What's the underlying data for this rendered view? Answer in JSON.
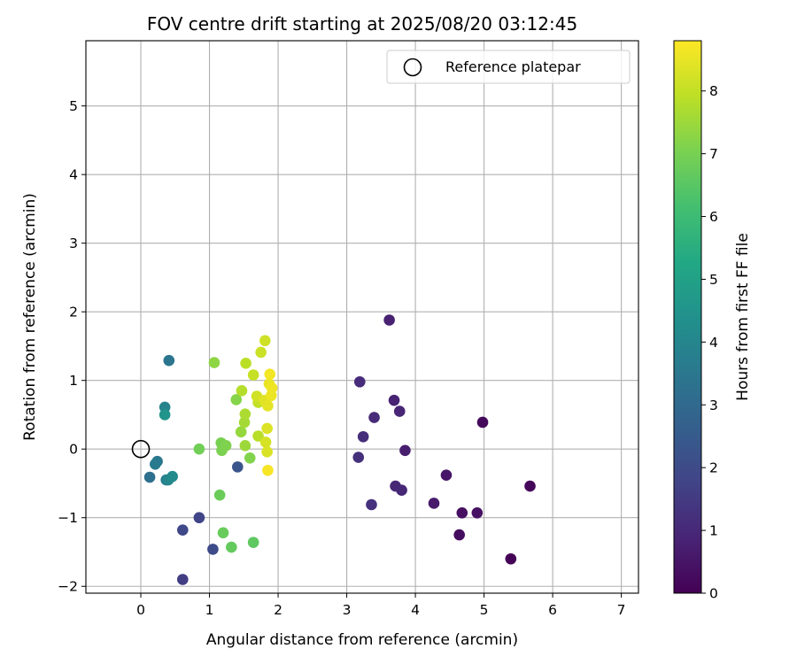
{
  "chart_data": {
    "type": "scatter",
    "title": "FOV centre drift starting at 2025/08/20 03:12:45",
    "xlabel": "Angular distance from reference (arcmin)",
    "ylabel": "Rotation from reference (arcmin)",
    "xlim": [
      -0.8,
      7.25
    ],
    "ylim": [
      -2.1,
      5.95
    ],
    "xticks": [
      0,
      1,
      2,
      3,
      4,
      5,
      6,
      7
    ],
    "yticks": [
      -2,
      -1,
      0,
      1,
      2,
      3,
      4,
      5
    ],
    "xtick_labels": [
      "0",
      "1",
      "2",
      "3",
      "4",
      "5",
      "6",
      "7"
    ],
    "ytick_labels": [
      "−2",
      "−1",
      "0",
      "1",
      "2",
      "3",
      "4",
      "5"
    ],
    "grid": true,
    "colormap": "viridis",
    "colorbar": {
      "label": "Hours from first FF file",
      "range": [
        0,
        8.8
      ],
      "ticks": [
        0,
        1,
        2,
        3,
        4,
        5,
        6,
        7,
        8
      ],
      "tick_labels": [
        "0",
        "1",
        "2",
        "3",
        "4",
        "5",
        "6",
        "7",
        "8"
      ]
    },
    "legend": {
      "placement": "top-right",
      "entries": [
        "Reference platepar"
      ]
    },
    "reference": {
      "x": 0,
      "y": 0
    },
    "points": [
      {
        "x": 5.39,
        "y": -1.6,
        "c": 0.05
      },
      {
        "x": 5.67,
        "y": -0.54,
        "c": 0.15
      },
      {
        "x": 4.98,
        "y": 0.39,
        "c": 0.2
      },
      {
        "x": 4.64,
        "y": -1.25,
        "c": 0.3
      },
      {
        "x": 4.68,
        "y": -0.93,
        "c": 0.35
      },
      {
        "x": 4.9,
        "y": -0.93,
        "c": 0.4
      },
      {
        "x": 4.45,
        "y": -0.38,
        "c": 0.5
      },
      {
        "x": 4.27,
        "y": -0.79,
        "c": 0.6
      },
      {
        "x": 3.85,
        "y": -0.02,
        "c": 0.7
      },
      {
        "x": 3.62,
        "y": 1.88,
        "c": 0.8
      },
      {
        "x": 3.69,
        "y": 0.71,
        "c": 0.85
      },
      {
        "x": 3.77,
        "y": 0.55,
        "c": 0.9
      },
      {
        "x": 3.71,
        "y": -0.54,
        "c": 0.95
      },
      {
        "x": 3.8,
        "y": -0.6,
        "c": 1.0
      },
      {
        "x": 3.4,
        "y": 0.46,
        "c": 1.05
      },
      {
        "x": 3.19,
        "y": 0.98,
        "c": 1.1
      },
      {
        "x": 3.24,
        "y": 0.18,
        "c": 1.15
      },
      {
        "x": 3.17,
        "y": -0.12,
        "c": 1.2
      },
      {
        "x": 3.36,
        "y": -0.81,
        "c": 1.25
      },
      {
        "x": 0.61,
        "y": -1.9,
        "c": 1.6
      },
      {
        "x": 0.85,
        "y": -1.0,
        "c": 1.8
      },
      {
        "x": 0.61,
        "y": -1.18,
        "c": 1.9
      },
      {
        "x": 1.05,
        "y": -1.46,
        "c": 2.0
      },
      {
        "x": 1.41,
        "y": -0.26,
        "c": 2.3
      },
      {
        "x": 0.13,
        "y": -0.41,
        "c": 3.2
      },
      {
        "x": 0.41,
        "y": 1.29,
        "c": 3.4
      },
      {
        "x": 0.24,
        "y": -0.18,
        "c": 3.5
      },
      {
        "x": 0.21,
        "y": -0.22,
        "c": 3.6
      },
      {
        "x": 0.37,
        "y": -0.45,
        "c": 3.7
      },
      {
        "x": 0.35,
        "y": 0.61,
        "c": 3.9
      },
      {
        "x": 0.4,
        "y": -0.45,
        "c": 4.0
      },
      {
        "x": 0.46,
        "y": -0.4,
        "c": 4.2
      },
      {
        "x": 0.35,
        "y": 0.5,
        "c": 4.5
      },
      {
        "x": 1.64,
        "y": -1.36,
        "c": 6.6
      },
      {
        "x": 1.32,
        "y": -1.43,
        "c": 6.7
      },
      {
        "x": 1.2,
        "y": -1.22,
        "c": 6.75
      },
      {
        "x": 1.15,
        "y": -0.67,
        "c": 6.8
      },
      {
        "x": 0.85,
        "y": 0.0,
        "c": 6.9
      },
      {
        "x": 1.17,
        "y": 0.09,
        "c": 7.0
      },
      {
        "x": 1.18,
        "y": -0.02,
        "c": 7.05
      },
      {
        "x": 1.24,
        "y": 0.05,
        "c": 7.1
      },
      {
        "x": 1.59,
        "y": -0.13,
        "c": 7.15
      },
      {
        "x": 1.39,
        "y": 0.72,
        "c": 7.2
      },
      {
        "x": 1.07,
        "y": 1.26,
        "c": 7.3
      },
      {
        "x": 1.46,
        "y": 0.25,
        "c": 7.4
      },
      {
        "x": 1.52,
        "y": 0.05,
        "c": 7.5
      },
      {
        "x": 1.51,
        "y": 0.39,
        "c": 7.6
      },
      {
        "x": 1.52,
        "y": 0.51,
        "c": 7.7
      },
      {
        "x": 1.47,
        "y": 0.85,
        "c": 7.8
      },
      {
        "x": 1.71,
        "y": 0.19,
        "c": 7.85
      },
      {
        "x": 1.53,
        "y": 1.25,
        "c": 7.9
      },
      {
        "x": 1.71,
        "y": 0.68,
        "c": 8.0
      },
      {
        "x": 1.64,
        "y": 1.08,
        "c": 8.05
      },
      {
        "x": 1.75,
        "y": 1.41,
        "c": 8.1
      },
      {
        "x": 1.81,
        "y": 1.58,
        "c": 8.15
      },
      {
        "x": 1.69,
        "y": 0.77,
        "c": 8.2
      },
      {
        "x": 1.82,
        "y": 0.1,
        "c": 8.25
      },
      {
        "x": 1.84,
        "y": -0.04,
        "c": 8.3
      },
      {
        "x": 1.84,
        "y": 0.3,
        "c": 8.35
      },
      {
        "x": 1.8,
        "y": 0.71,
        "c": 8.4
      },
      {
        "x": 1.85,
        "y": 0.63,
        "c": 8.45
      },
      {
        "x": 1.87,
        "y": 0.95,
        "c": 8.5
      },
      {
        "x": 1.9,
        "y": 0.78,
        "c": 8.55
      },
      {
        "x": 1.91,
        "y": 0.89,
        "c": 8.6
      },
      {
        "x": 1.88,
        "y": 1.09,
        "c": 8.65
      },
      {
        "x": 1.85,
        "y": -0.31,
        "c": 8.7
      }
    ]
  }
}
